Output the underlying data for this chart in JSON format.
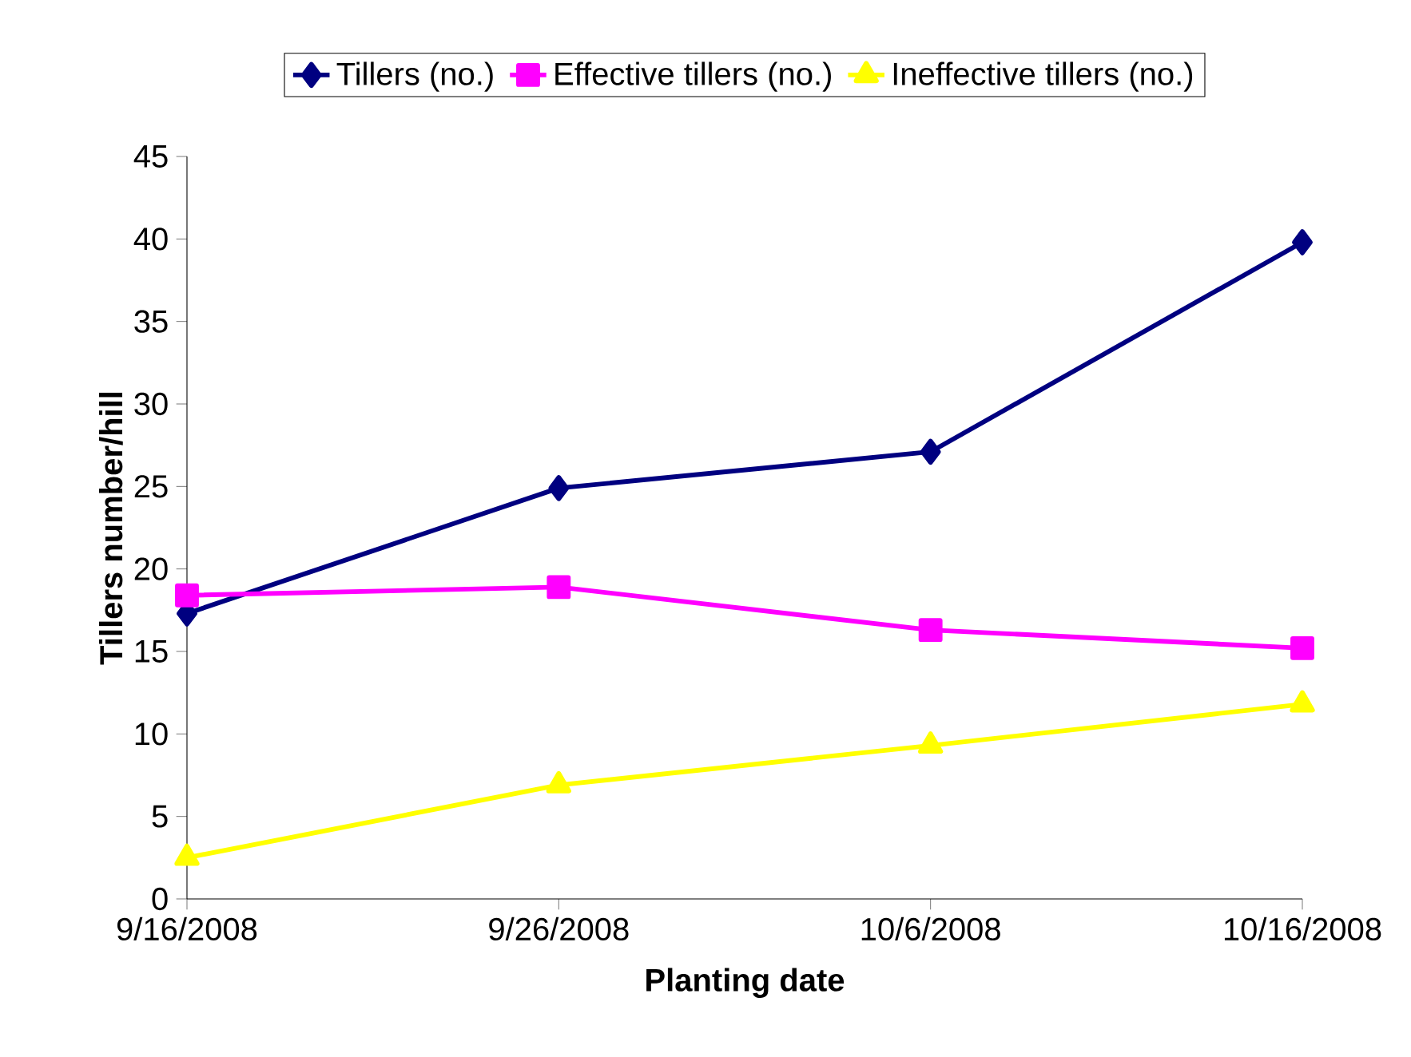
{
  "chart_data": {
    "type": "line",
    "xlabel": "Planting date",
    "ylabel": "Tillers number/hill",
    "categories": [
      "9/16/2008",
      "9/26/2008",
      "10/6/2008",
      "10/16/2008"
    ],
    "series": [
      {
        "name": "Tillers (no.)",
        "color": "#000080",
        "marker": "diamond",
        "values": [
          17.3,
          24.9,
          27.1,
          39.8
        ]
      },
      {
        "name": "Effective tillers (no.)",
        "color": "#ff00ff",
        "marker": "square",
        "values": [
          18.4,
          18.9,
          16.3,
          15.2
        ]
      },
      {
        "name": "Ineffective tillers (no.)",
        "color": "#ffff00",
        "marker": "triangle",
        "values": [
          2.5,
          6.9,
          9.3,
          11.8
        ]
      }
    ],
    "ylim": [
      0,
      45
    ],
    "yticks": [
      0,
      5,
      10,
      15,
      20,
      25,
      30,
      35,
      40,
      45
    ],
    "grid": false,
    "legend": "top",
    "line_style": "solid"
  }
}
